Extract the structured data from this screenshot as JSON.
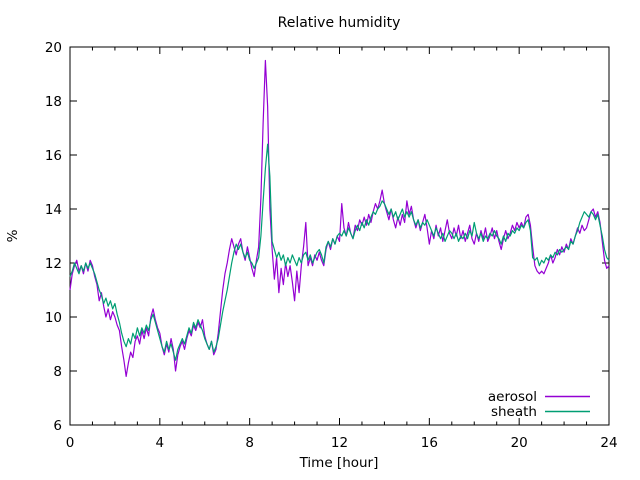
{
  "chart_data": {
    "type": "line",
    "title": "Relative humidity",
    "xlabel": "Time [hour]",
    "ylabel": "%",
    "xlim": [
      0,
      24
    ],
    "ylim": [
      6,
      20
    ],
    "x_ticks": [
      0,
      4,
      8,
      12,
      16,
      20,
      24
    ],
    "x_minor_tick_step": 1,
    "y_ticks": [
      6,
      8,
      10,
      12,
      14,
      16,
      18,
      20
    ],
    "grid": false,
    "legend_position": "inside-bottom-right",
    "x_start": 0,
    "x_step_hours": 0.1,
    "series": [
      {
        "name": "aerosol",
        "color": "#9400d3",
        "values": [
          11.0,
          11.6,
          11.9,
          12.1,
          11.7,
          11.9,
          11.6,
          12.0,
          11.7,
          12.1,
          11.9,
          11.5,
          11.2,
          10.6,
          10.9,
          10.4,
          10.0,
          10.3,
          9.9,
          10.2,
          10.0,
          9.7,
          9.5,
          8.9,
          8.4,
          7.8,
          8.3,
          8.7,
          8.5,
          9.1,
          9.3,
          9.0,
          9.5,
          9.2,
          9.6,
          9.3,
          10.0,
          10.3,
          9.9,
          9.6,
          9.4,
          8.9,
          8.6,
          9.0,
          8.7,
          9.2,
          8.8,
          8.0,
          8.6,
          8.9,
          9.1,
          8.8,
          9.2,
          9.5,
          9.3,
          9.7,
          9.5,
          9.8,
          9.6,
          9.9,
          9.3,
          9.0,
          8.8,
          9.1,
          8.6,
          8.8,
          9.4,
          10.2,
          11.0,
          11.6,
          12.0,
          12.5,
          12.9,
          12.6,
          12.3,
          12.7,
          12.9,
          12.4,
          12.1,
          12.6,
          12.2,
          11.8,
          11.5,
          12.1,
          12.6,
          14.4,
          17.2,
          19.5,
          17.8,
          14.0,
          12.5,
          11.4,
          12.2,
          10.9,
          11.8,
          11.2,
          12.0,
          11.5,
          11.9,
          11.3,
          10.6,
          11.7,
          10.9,
          11.9,
          12.6,
          13.5,
          11.9,
          12.2,
          11.9,
          12.3,
          12.1,
          12.4,
          12.1,
          11.9,
          12.5,
          12.8,
          12.5,
          12.9,
          12.7,
          13.0,
          12.8,
          14.2,
          13.3,
          13.0,
          13.5,
          13.1,
          12.9,
          13.4,
          13.2,
          13.6,
          13.4,
          13.7,
          13.4,
          13.8,
          13.5,
          13.9,
          14.2,
          14.0,
          14.3,
          14.7,
          14.2,
          13.9,
          13.6,
          14.0,
          13.6,
          13.3,
          13.7,
          13.4,
          13.8,
          13.5,
          14.3,
          13.8,
          14.1,
          13.6,
          13.3,
          13.6,
          13.2,
          13.5,
          13.8,
          13.3,
          12.7,
          13.2,
          12.9,
          13.4,
          13.0,
          13.3,
          12.8,
          13.2,
          13.6,
          13.1,
          12.9,
          13.3,
          13.0,
          13.4,
          12.9,
          13.2,
          12.8,
          13.1,
          13.4,
          12.9,
          12.7,
          13.1,
          12.8,
          13.2,
          12.9,
          13.3,
          12.8,
          13.0,
          13.3,
          12.9,
          13.2,
          12.8,
          12.5,
          12.9,
          13.2,
          12.9,
          13.1,
          13.4,
          13.2,
          13.5,
          13.3,
          13.5,
          13.3,
          13.7,
          13.8,
          13.4,
          12.6,
          11.9,
          11.7,
          11.6,
          11.7,
          11.6,
          11.8,
          12.0,
          12.3,
          12.0,
          12.2,
          12.5,
          12.3,
          12.6,
          12.4,
          12.7,
          12.5,
          12.9,
          12.7,
          13.0,
          13.3,
          13.1,
          13.4,
          13.2,
          13.3,
          13.6,
          13.9,
          14.0,
          13.7,
          13.9,
          13.5,
          12.8,
          12.1,
          11.8,
          11.9
        ]
      },
      {
        "name": "sheath",
        "color": "#009e73",
        "values": [
          11.5,
          11.7,
          12.0,
          11.8,
          11.6,
          11.9,
          11.7,
          12.0,
          11.8,
          12.0,
          11.8,
          11.6,
          11.3,
          11.0,
          10.8,
          10.5,
          10.7,
          10.4,
          10.6,
          10.3,
          10.5,
          10.1,
          9.8,
          9.4,
          9.1,
          8.9,
          9.2,
          9.0,
          9.4,
          9.2,
          9.6,
          9.3,
          9.6,
          9.4,
          9.7,
          9.5,
          9.9,
          10.1,
          9.8,
          9.5,
          9.2,
          8.9,
          8.7,
          9.1,
          8.8,
          9.0,
          8.7,
          8.4,
          8.8,
          9.0,
          9.2,
          9.0,
          9.3,
          9.6,
          9.4,
          9.8,
          9.6,
          9.9,
          9.7,
          9.5,
          9.2,
          9.0,
          8.8,
          9.1,
          8.7,
          8.9,
          9.2,
          9.7,
          10.2,
          10.6,
          11.0,
          11.5,
          12.0,
          12.4,
          12.7,
          12.5,
          12.7,
          12.4,
          12.2,
          12.4,
          12.1,
          12.0,
          11.8,
          12.0,
          12.2,
          13.0,
          14.3,
          15.5,
          16.4,
          15.2,
          12.8,
          12.5,
          12.2,
          12.4,
          12.1,
          12.3,
          11.9,
          12.2,
          12.0,
          12.3,
          12.1,
          11.9,
          12.2,
          12.0,
          12.3,
          12.4,
          12.1,
          12.3,
          12.0,
          12.2,
          12.4,
          12.5,
          12.3,
          12.0,
          12.6,
          12.8,
          12.6,
          12.9,
          12.7,
          13.0,
          13.1,
          13.0,
          13.2,
          13.0,
          13.3,
          13.1,
          12.9,
          13.2,
          13.4,
          13.2,
          13.5,
          13.3,
          13.6,
          13.4,
          13.7,
          13.9,
          13.8,
          14.0,
          14.1,
          14.3,
          14.2,
          14.0,
          13.8,
          14.0,
          13.7,
          13.9,
          13.6,
          13.8,
          14.0,
          13.7,
          13.9,
          13.7,
          13.9,
          13.6,
          13.4,
          13.6,
          13.3,
          13.5,
          13.4,
          13.6,
          13.4,
          13.2,
          13.0,
          13.3,
          13.1,
          12.9,
          13.1,
          12.8,
          13.0,
          13.2,
          13.1,
          12.9,
          13.1,
          12.8,
          13.0,
          12.9,
          13.1,
          12.9,
          13.2,
          13.0,
          13.5,
          13.1,
          12.9,
          13.1,
          12.8,
          13.0,
          12.9,
          13.1,
          13.0,
          13.2,
          13.0,
          12.9,
          12.7,
          13.0,
          12.8,
          13.1,
          13.0,
          13.2,
          13.1,
          13.3,
          13.2,
          13.4,
          13.3,
          13.5,
          13.6,
          13.2,
          12.2,
          12.1,
          12.2,
          11.9,
          12.1,
          12.0,
          12.2,
          12.1,
          12.3,
          12.2,
          12.4,
          12.3,
          12.5,
          12.4,
          12.5,
          12.6,
          12.5,
          12.8,
          12.7,
          13.0,
          13.2,
          13.5,
          13.7,
          13.9,
          13.8,
          13.7,
          13.9,
          13.8,
          13.6,
          13.8,
          13.4,
          13.0,
          12.5,
          12.2,
          12.1
        ]
      }
    ]
  }
}
